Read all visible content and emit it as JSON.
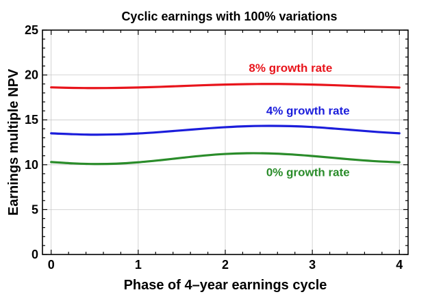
{
  "chart_data": {
    "type": "line",
    "title": "Cyclic earnings with 100% variations",
    "xlabel": "Phase of 4–year earnings cycle",
    "ylabel": "Earnings multiple NPV",
    "xlim": [
      -0.1,
      4.1
    ],
    "ylim": [
      0,
      25
    ],
    "xticks": [
      0,
      1,
      2,
      3,
      4
    ],
    "yticks": [
      0,
      5,
      10,
      15,
      20,
      25
    ],
    "xtick_labels": [
      "0",
      "1",
      "2",
      "3",
      "4"
    ],
    "ytick_labels": [
      "0",
      "5",
      "10",
      "15",
      "20",
      "25"
    ],
    "minor_ticks": {
      "x_step": 0.2,
      "y_step": 1
    },
    "grid": true,
    "x": [
      0,
      0.25,
      0.5,
      0.75,
      1.0,
      1.25,
      1.5,
      1.75,
      2.0,
      2.25,
      2.5,
      2.75,
      3.0,
      3.25,
      3.5,
      3.75,
      4.0
    ],
    "series": [
      {
        "name": "8% growth rate",
        "color": "#e8141b",
        "values": [
          18.62,
          18.56,
          18.54,
          18.56,
          18.61,
          18.68,
          18.77,
          18.86,
          18.93,
          18.98,
          19.0,
          18.98,
          18.93,
          18.86,
          18.77,
          18.68,
          18.6
        ]
      },
      {
        "name": "4% growth rate",
        "color": "#1b1ddb",
        "values": [
          13.5,
          13.4,
          13.35,
          13.38,
          13.48,
          13.64,
          13.83,
          14.02,
          14.18,
          14.29,
          14.33,
          14.3,
          14.2,
          14.03,
          13.84,
          13.65,
          13.5
        ]
      },
      {
        "name": "0% growth rate",
        "color": "#2a8c2a",
        "values": [
          10.3,
          10.15,
          10.08,
          10.12,
          10.27,
          10.5,
          10.77,
          11.02,
          11.2,
          11.28,
          11.26,
          11.15,
          10.97,
          10.76,
          10.55,
          10.38,
          10.27
        ]
      }
    ]
  }
}
